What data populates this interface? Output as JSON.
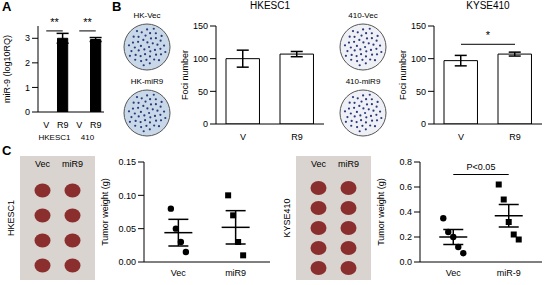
{
  "chart_data": [
    {
      "panel": "A",
      "type": "bar",
      "y_label": "miR-9 (log10RQ)",
      "categories": [
        "V",
        "R9",
        "V",
        "R9"
      ],
      "groups": [
        "HKESC1",
        "410"
      ],
      "values": [
        0,
        3.0,
        0,
        2.95
      ],
      "errors": [
        0,
        0.2,
        0,
        0.08
      ],
      "colors": [
        "#ffffff",
        "#000000",
        "#ffffff",
        "#000000"
      ],
      "ylim": [
        0,
        3.5
      ],
      "yticks": [
        0,
        1,
        2,
        3
      ],
      "annotations": [
        {
          "text": "**",
          "group": "HKESC1",
          "y": 3.3
        },
        {
          "text": "**",
          "group": "410",
          "y": 3.3
        }
      ]
    },
    {
      "panel": "B",
      "type": "image",
      "labels": [
        "HK-Vec",
        "HK-miR9"
      ],
      "color": "#c9d8e8"
    },
    {
      "type": "bar",
      "title": "HKESC1",
      "y_label": "Foci number",
      "categories": [
        "V",
        "R9"
      ],
      "values": [
        100,
        107
      ],
      "errors": [
        13,
        4
      ],
      "color": "#ffffff",
      "ylim": [
        0,
        150
      ],
      "yticks": [
        0,
        50,
        100,
        150
      ]
    },
    {
      "type": "image",
      "labels": [
        "410-Vec",
        "410-miR9"
      ],
      "color": "#eef0f5"
    },
    {
      "type": "bar",
      "title": "KYSE410",
      "y_label": "Foci number",
      "categories": [
        "V",
        "R9"
      ],
      "values": [
        97,
        107
      ],
      "errors": [
        8,
        3
      ],
      "color": "#ffffff",
      "ylim": [
        0,
        150
      ],
      "yticks": [
        0,
        50,
        100,
        150
      ],
      "annotations": [
        {
          "text": "*",
          "y": 122
        }
      ]
    },
    {
      "panel": "C",
      "type": "image",
      "title": "HKESC1",
      "labels": [
        "Vec",
        "miR9"
      ],
      "color": "#d9d4cf"
    },
    {
      "type": "scatter",
      "y_label": "Tumor weight (g)",
      "categories": [
        "Vec",
        "miR9"
      ],
      "points": [
        {
          "values": [
            0.08,
            0.05,
            0.03,
            0.015
          ],
          "marker": "circle"
        },
        {
          "values": [
            0.1,
            0.07,
            0.03,
            0.01
          ],
          "marker": "square"
        }
      ],
      "means": [
        0.044,
        0.052
      ],
      "errors": [
        0.02,
        0.025
      ],
      "ylim": [
        0,
        0.15
      ],
      "yticks": [
        {
          "value": 0,
          "label": "0.00"
        },
        {
          "value": 0.05,
          "label": "0.05"
        },
        {
          "value": 0.1,
          "label": "0.10"
        },
        {
          "value": 0.15,
          "label": "0.15"
        }
      ]
    },
    {
      "type": "image",
      "title": "KYSE410",
      "labels": [
        "Vec",
        "miR9"
      ],
      "color": "#d9d4cf"
    },
    {
      "type": "scatter",
      "y_label": "Tumor weight (g)",
      "categories": [
        "Vec",
        "miR-9"
      ],
      "points": [
        {
          "values": [
            0.35,
            0.24,
            0.2,
            0.12,
            0.07
          ],
          "marker": "circle"
        },
        {
          "values": [
            0.62,
            0.5,
            0.32,
            0.22,
            0.18
          ],
          "marker": "square"
        }
      ],
      "means": [
        0.2,
        0.37
      ],
      "errors": [
        0.06,
        0.09
      ],
      "ylim": [
        0,
        0.8
      ],
      "yticks": [
        {
          "value": 0,
          "label": "0.0"
        },
        {
          "value": 0.2,
          "label": "0.2"
        },
        {
          "value": 0.4,
          "label": "0.4"
        },
        {
          "value": 0.6,
          "label": "0.6"
        },
        {
          "value": 0.8,
          "label": "0.8"
        }
      ],
      "annotations": [
        {
          "text": "P<0.05",
          "y": 0.7
        }
      ]
    }
  ]
}
